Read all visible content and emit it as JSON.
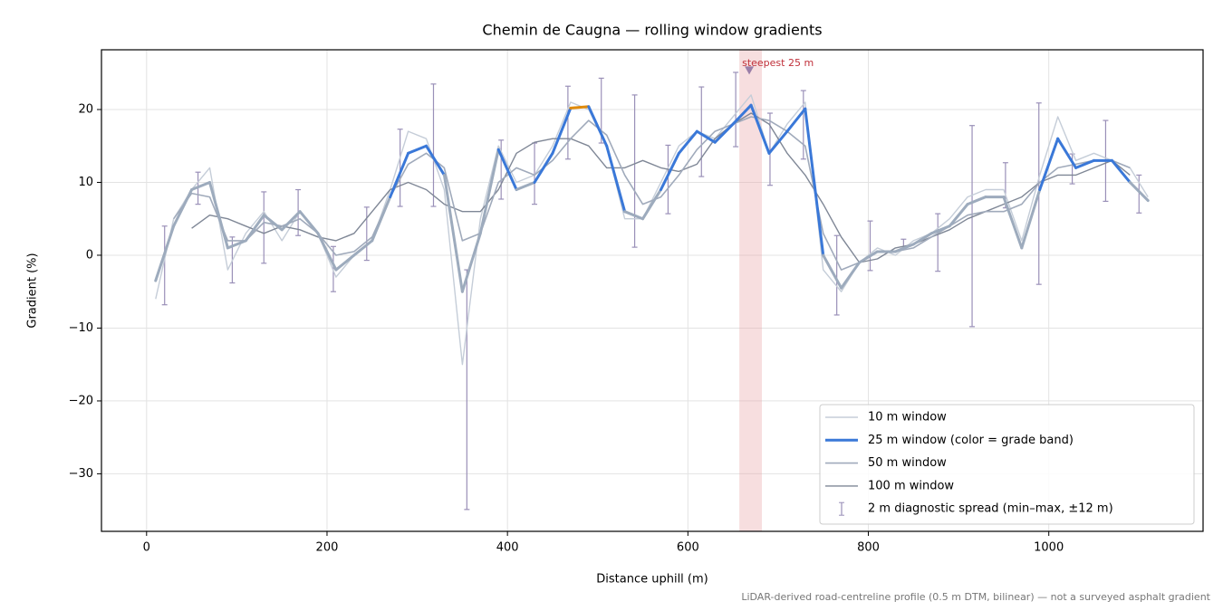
{
  "chart_data": {
    "type": "line",
    "title": "Chemin de Caugna — rolling window gradients",
    "xlabel": "Distance uphill (m)",
    "ylabel": "Gradient (%)",
    "footnote": "LiDAR-derived road-centreline profile (0.5 m DTM, bilinear) — not a surveyed asphalt gradient",
    "xlim": [
      -50,
      1171
    ],
    "ylim": [
      -37.9,
      28.2
    ],
    "xticks": [
      0,
      200,
      400,
      600,
      800,
      1000
    ],
    "yticks": [
      {
        "value": -30,
        "label": "−30"
      },
      {
        "value": -20,
        "label": "−20"
      },
      {
        "value": -10,
        "label": "−10"
      },
      0,
      10,
      20
    ],
    "grid": true,
    "legend": "lower right",
    "x": [
      10,
      30,
      50,
      70,
      90,
      110,
      130,
      150,
      170,
      190,
      210,
      230,
      250,
      270,
      290,
      310,
      330,
      350,
      370,
      390,
      410,
      430,
      450,
      470,
      490,
      510,
      530,
      550,
      570,
      590,
      610,
      630,
      650,
      670,
      690,
      710,
      730,
      750,
      770,
      790,
      810,
      830,
      850,
      870,
      890,
      910,
      930,
      950,
      970,
      990,
      1010,
      1030,
      1050,
      1070,
      1090,
      1110
    ],
    "series": [
      {
        "name": "10 m window",
        "color": "#c5cdd8",
        "width": 1.4,
        "values": [
          -6,
          5,
          9,
          12,
          -2,
          3,
          6,
          2,
          6,
          3,
          -3,
          0,
          2,
          9,
          17,
          16,
          9,
          -15,
          5,
          15,
          10,
          11,
          15,
          21,
          20,
          15,
          5,
          5,
          10,
          15,
          17,
          16,
          19,
          22,
          14,
          18,
          21,
          -2,
          -5,
          -1,
          1,
          0,
          2,
          3,
          5,
          8,
          9,
          9,
          2,
          11,
          19,
          13,
          14,
          13,
          12,
          8
        ]
      },
      {
        "name": "25 m window (color = grade band)",
        "color": "#3a78d8",
        "width": 3,
        "band_thresholds": [
          10,
          20
        ],
        "band_colors": [
          "#9dabbd",
          "#3a78d8",
          "#e08a0a"
        ],
        "values": [
          -3.5,
          4,
          9,
          10,
          1,
          2,
          5.5,
          3.5,
          6,
          3,
          -2,
          0,
          2,
          8,
          14,
          15,
          11,
          -5,
          3,
          14.5,
          9,
          10,
          14,
          20.2,
          20.4,
          15,
          6,
          5,
          9,
          14,
          17,
          15.5,
          18,
          20.6,
          14,
          17,
          20.1,
          0,
          -4.5,
          -1,
          0.5,
          0.5,
          1.5,
          3,
          4,
          7,
          8,
          8,
          1,
          9,
          16,
          12,
          13,
          13,
          10,
          7.5
        ]
      },
      {
        "name": "50 m window",
        "color": "#a0aabb",
        "width": 1.6,
        "values": [
          null,
          5,
          8.5,
          8,
          2,
          2,
          4.5,
          4,
          5,
          3,
          0,
          0.5,
          2.5,
          8,
          12.5,
          14,
          12,
          2,
          3,
          10,
          12,
          11,
          13,
          16,
          18.5,
          16.5,
          11,
          7,
          8,
          11,
          14.5,
          17,
          18,
          19,
          18.5,
          17,
          15,
          3,
          -2,
          -1,
          0.5,
          0.5,
          1,
          2.5,
          4,
          5.5,
          6,
          6,
          7,
          10,
          12,
          12.5,
          13,
          13,
          12,
          null
        ]
      },
      {
        "name": "100 m window",
        "color": "#7f8796",
        "width": 1.4,
        "values": [
          null,
          null,
          3.7,
          5.5,
          5,
          4,
          3,
          4,
          3.5,
          2.5,
          2,
          3,
          6,
          9,
          10,
          9,
          7,
          6,
          6,
          9,
          14,
          15.5,
          16,
          16,
          15,
          12,
          12,
          13,
          12,
          11.5,
          12.5,
          16,
          18,
          19.5,
          18,
          14,
          11,
          7,
          2.5,
          -1,
          -0.5,
          1,
          1.5,
          2.5,
          3.5,
          5,
          6,
          7,
          8,
          10,
          11,
          11,
          12,
          13,
          11,
          null
        ]
      }
    ],
    "spread": {
      "name": "2 m diagnostic spread (min–max, ±12 m)",
      "color": "#9a90b8",
      "x": [
        20,
        57,
        95,
        130,
        168,
        207,
        244,
        281,
        318,
        355,
        393,
        430,
        467,
        504,
        541,
        578,
        615,
        653,
        691,
        728,
        765,
        802,
        839,
        877,
        915,
        952,
        989,
        1026,
        1063,
        1100
      ],
      "min": [
        -6.8,
        7,
        -3.8,
        -1.1,
        2.7,
        -5,
        -0.7,
        6.7,
        6.7,
        -34.9,
        7.7,
        7,
        13.2,
        15.4,
        1.1,
        5.7,
        10.8,
        14.9,
        9.6,
        13.2,
        -8.2,
        -2.1,
        0.9,
        -2.2,
        -9.8,
        6.5,
        -4,
        9.8,
        7.4,
        5.8
      ],
      "max": [
        4,
        11.4,
        2.5,
        8.7,
        9,
        1.2,
        6.6,
        17.3,
        23.5,
        -2,
        15.8,
        15.4,
        23.2,
        24.3,
        22,
        15.1,
        23.1,
        25.1,
        19.5,
        22.6,
        2.7,
        4.7,
        2.2,
        5.7,
        17.8,
        12.7,
        20.9,
        13.9,
        18.5,
        11
      ]
    },
    "highlight": {
      "x": [
        657,
        682
      ],
      "label": "steepest 25 m",
      "color": "#e8a0a4",
      "marker": {
        "x": 668,
        "y": 25.3
      }
    }
  }
}
